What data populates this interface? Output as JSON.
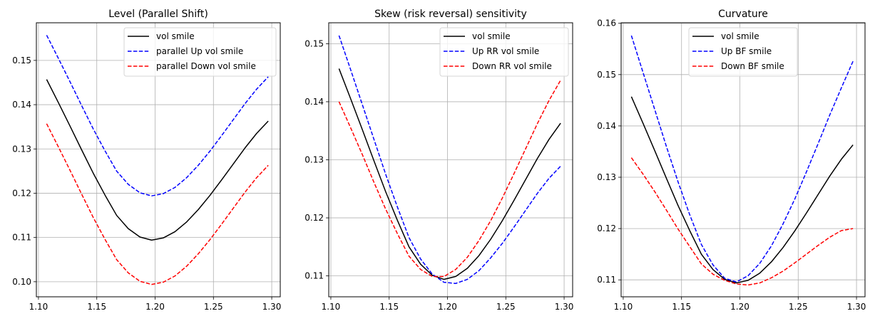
{
  "chart_data": [
    {
      "type": "line",
      "title": "Level (Parallel Shift)",
      "xlabel": "",
      "ylabel": "",
      "xlim": [
        1.0982,
        1.3073
      ],
      "ylim": [
        0.0966,
        0.1585
      ],
      "grid": true,
      "legend_position": "top-right",
      "xticks": [
        1.1,
        1.15,
        1.2,
        1.25,
        1.3
      ],
      "xtick_labels": [
        "1.10",
        "1.15",
        "1.20",
        "1.25",
        "1.30"
      ],
      "yticks": [
        0.1,
        0.11,
        0.12,
        0.13,
        0.14,
        0.15
      ],
      "ytick_labels": [
        "0.10",
        "0.11",
        "0.12",
        "0.13",
        "0.14",
        "0.15"
      ],
      "x": [
        1.107,
        1.117,
        1.127,
        1.137,
        1.147,
        1.157,
        1.167,
        1.177,
        1.187,
        1.197,
        1.207,
        1.217,
        1.227,
        1.237,
        1.247,
        1.257,
        1.267,
        1.277,
        1.287,
        1.297
      ],
      "series": [
        {
          "name": "vol smile",
          "color": "#000000",
          "dash": "solid",
          "values": [
            0.1457,
            0.1405,
            0.1352,
            0.1298,
            0.1245,
            0.1196,
            0.115,
            0.112,
            0.1101,
            0.1094,
            0.1099,
            0.1113,
            0.1135,
            0.1163,
            0.1195,
            0.123,
            0.1266,
            0.1302,
            0.1335,
            0.1363
          ]
        },
        {
          "name": "parallel Up vol smile",
          "color": "#0000ff",
          "dash": "dashed",
          "values": [
            0.1557,
            0.1505,
            0.1452,
            0.1398,
            0.1345,
            0.1296,
            0.125,
            0.122,
            0.1201,
            0.1194,
            0.1199,
            0.1213,
            0.1235,
            0.1263,
            0.1295,
            0.133,
            0.1366,
            0.1402,
            0.1435,
            0.1463
          ]
        },
        {
          "name": "parallel Down vol smile",
          "color": "#ff0000",
          "dash": "dashed",
          "values": [
            0.1357,
            0.1305,
            0.1252,
            0.1198,
            0.1145,
            0.1096,
            0.105,
            0.102,
            0.1001,
            0.0994,
            0.0999,
            0.1013,
            0.1035,
            0.1063,
            0.1095,
            0.113,
            0.1166,
            0.1202,
            0.1235,
            0.1263
          ]
        }
      ]
    },
    {
      "type": "line",
      "title": "Skew (risk reversal) sensitivity",
      "xlabel": "",
      "ylabel": "",
      "xlim": [
        1.0982,
        1.3073
      ],
      "ylim": [
        0.1064,
        0.1536
      ],
      "grid": true,
      "legend_position": "top-right",
      "xticks": [
        1.1,
        1.15,
        1.2,
        1.25,
        1.3
      ],
      "xtick_labels": [
        "1.10",
        "1.15",
        "1.20",
        "1.25",
        "1.30"
      ],
      "yticks": [
        0.11,
        0.12,
        0.13,
        0.14,
        0.15
      ],
      "ytick_labels": [
        "0.11",
        "0.12",
        "0.13",
        "0.14",
        "0.15"
      ],
      "x": [
        1.107,
        1.117,
        1.127,
        1.137,
        1.147,
        1.157,
        1.167,
        1.177,
        1.187,
        1.197,
        1.207,
        1.217,
        1.227,
        1.237,
        1.247,
        1.257,
        1.267,
        1.277,
        1.287,
        1.297
      ],
      "series": [
        {
          "name": "vol smile",
          "color": "#000000",
          "dash": "solid",
          "values": [
            0.1457,
            0.1405,
            0.1352,
            0.1298,
            0.1245,
            0.1196,
            0.115,
            0.112,
            0.1101,
            0.1094,
            0.1099,
            0.1113,
            0.1135,
            0.1163,
            0.1195,
            0.123,
            0.1266,
            0.1302,
            0.1335,
            0.1363
          ]
        },
        {
          "name": "Up RR vol smile",
          "color": "#0000ff",
          "dash": "dashed",
          "values": [
            0.1514,
            0.1455,
            0.1395,
            0.1335,
            0.1275,
            0.1219,
            0.1166,
            0.1129,
            0.1103,
            0.1089,
            0.1087,
            0.1094,
            0.1109,
            0.1131,
            0.1156,
            0.1184,
            0.1213,
            0.1242,
            0.1268,
            0.1289
          ]
        },
        {
          "name": "Down RR vol smile",
          "color": "#ff0000",
          "dash": "dashed",
          "values": [
            0.14,
            0.1355,
            0.1309,
            0.1261,
            0.1215,
            0.1173,
            0.1134,
            0.1111,
            0.1099,
            0.1099,
            0.1111,
            0.1132,
            0.1161,
            0.1195,
            0.1234,
            0.1276,
            0.1319,
            0.1362,
            0.1402,
            0.1437
          ]
        }
      ]
    },
    {
      "type": "line",
      "title": "Curvature",
      "xlabel": "",
      "ylabel": "",
      "xlim": [
        1.0982,
        1.3073
      ],
      "ylim": [
        0.1067,
        0.1601
      ],
      "grid": true,
      "legend_position": "top-center",
      "xticks": [
        1.1,
        1.15,
        1.2,
        1.25,
        1.3
      ],
      "xtick_labels": [
        "1.10",
        "1.15",
        "1.20",
        "1.25",
        "1.30"
      ],
      "yticks": [
        0.11,
        0.12,
        0.13,
        0.14,
        0.15,
        0.16
      ],
      "ytick_labels": [
        "0.11",
        "0.12",
        "0.13",
        "0.14",
        "0.15",
        "0.16"
      ],
      "x": [
        1.107,
        1.117,
        1.127,
        1.137,
        1.147,
        1.157,
        1.167,
        1.177,
        1.187,
        1.197,
        1.207,
        1.217,
        1.227,
        1.237,
        1.247,
        1.257,
        1.267,
        1.277,
        1.287,
        1.297
      ],
      "series": [
        {
          "name": "vol smile",
          "color": "#000000",
          "dash": "solid",
          "values": [
            0.1457,
            0.1405,
            0.1352,
            0.1298,
            0.1245,
            0.1196,
            0.115,
            0.112,
            0.1101,
            0.1094,
            0.1099,
            0.1113,
            0.1135,
            0.1163,
            0.1195,
            0.123,
            0.1266,
            0.1302,
            0.1335,
            0.1363
          ]
        },
        {
          "name": "Up BF smile",
          "color": "#0000ff",
          "dash": "dashed",
          "values": [
            0.1576,
            0.1504,
            0.1432,
            0.136,
            0.1291,
            0.1227,
            0.1169,
            0.1129,
            0.1103,
            0.1096,
            0.1108,
            0.1132,
            0.1166,
            0.1209,
            0.1257,
            0.131,
            0.1365,
            0.1421,
            0.1474,
            0.1526
          ]
        },
        {
          "name": "Down BF smile",
          "color": "#ff0000",
          "dash": "dashed",
          "values": [
            0.1338,
            0.1306,
            0.1272,
            0.1236,
            0.1199,
            0.1165,
            0.1131,
            0.1111,
            0.1099,
            0.1092,
            0.109,
            0.1094,
            0.1104,
            0.1117,
            0.1133,
            0.115,
            0.1167,
            0.1183,
            0.1196,
            0.12
          ]
        }
      ]
    }
  ]
}
